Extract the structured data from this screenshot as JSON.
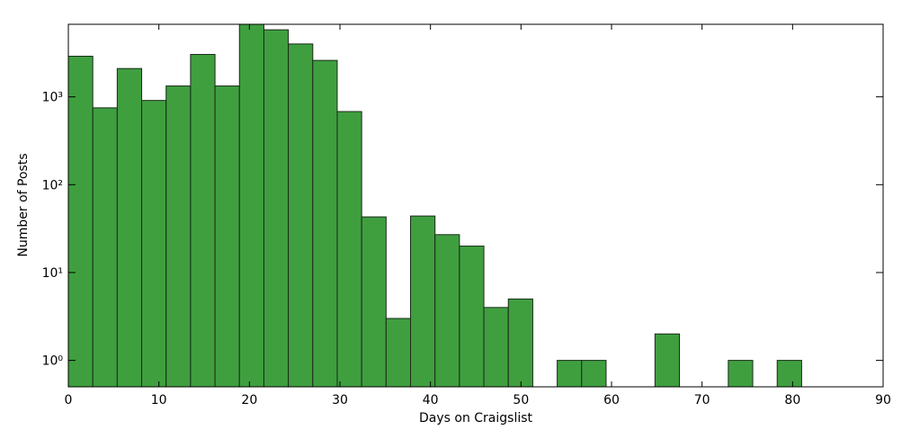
{
  "chart_data": {
    "type": "histogram",
    "xlabel": "Days on Craigslist",
    "ylabel": "Number of Posts",
    "bins": [
      0,
      2.7,
      5.4,
      8.1,
      10.8,
      13.5,
      16.2,
      18.9,
      21.6,
      24.3,
      27,
      29.7,
      32.4,
      35.1,
      37.8,
      40.5,
      43.2,
      45.9,
      48.6,
      51.3,
      54,
      56.7,
      59.4,
      62.1,
      64.8,
      67.5,
      70.2,
      72.9,
      75.6,
      78.3,
      81
    ],
    "values": [
      2900,
      750,
      2100,
      910,
      1330,
      3040,
      1330,
      6700,
      5800,
      4000,
      2600,
      680,
      43,
      3,
      44,
      27,
      20,
      4,
      5,
      0,
      1,
      1,
      0,
      0,
      2,
      0,
      0,
      1,
      0,
      1
    ],
    "color": "#3f9f3f",
    "xlim": [
      0,
      90
    ],
    "xticks": [
      0,
      10,
      20,
      30,
      40,
      50,
      60,
      70,
      80,
      90
    ],
    "ylim": [
      0.5,
      6700
    ],
    "yscale": "log",
    "yticks": [
      {
        "value": 1,
        "label": "10⁰"
      },
      {
        "value": 10,
        "label": "10¹"
      },
      {
        "value": 100,
        "label": "10²"
      },
      {
        "value": 1000,
        "label": "10³"
      }
    ]
  }
}
